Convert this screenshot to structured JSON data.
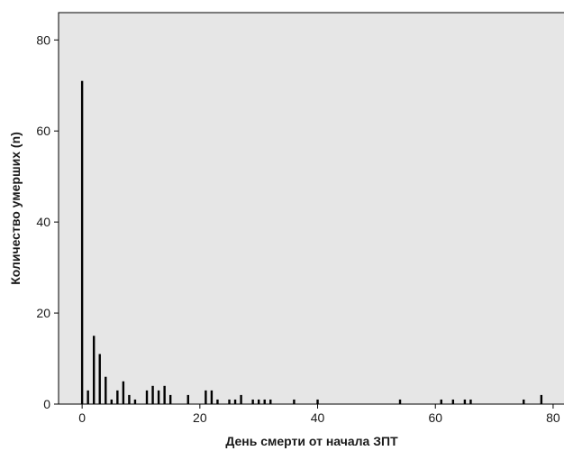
{
  "chart_data": {
    "type": "bar",
    "title": "",
    "xlabel": "День смерти от начала ЗПТ",
    "ylabel": "Количество умерших (n)",
    "xlim": [
      -4,
      82
    ],
    "ylim": [
      0,
      86
    ],
    "xticks": [
      0,
      20,
      40,
      60,
      80
    ],
    "yticks": [
      0,
      20,
      40,
      60,
      80
    ],
    "grid": false,
    "legend": "none",
    "colors": {
      "plot_bg": "#e6e6e6",
      "bar": "#000000",
      "axis": "#000000"
    },
    "series": [
      {
        "x": [
          0,
          1,
          2,
          3,
          4,
          5,
          6,
          7,
          8,
          9,
          11,
          12,
          13,
          14,
          15,
          18,
          21,
          22,
          23,
          25,
          26,
          27,
          29,
          30,
          31,
          32,
          36,
          40,
          54,
          61,
          63,
          65,
          66,
          75,
          78
        ],
        "values": [
          71,
          3,
          15,
          11,
          6,
          1,
          3,
          5,
          2,
          1,
          3,
          4,
          3,
          4,
          2,
          2,
          3,
          3,
          1,
          1,
          1,
          2,
          1,
          1,
          1,
          1,
          1,
          1,
          1,
          1,
          1,
          1,
          1,
          1,
          2
        ]
      }
    ]
  }
}
